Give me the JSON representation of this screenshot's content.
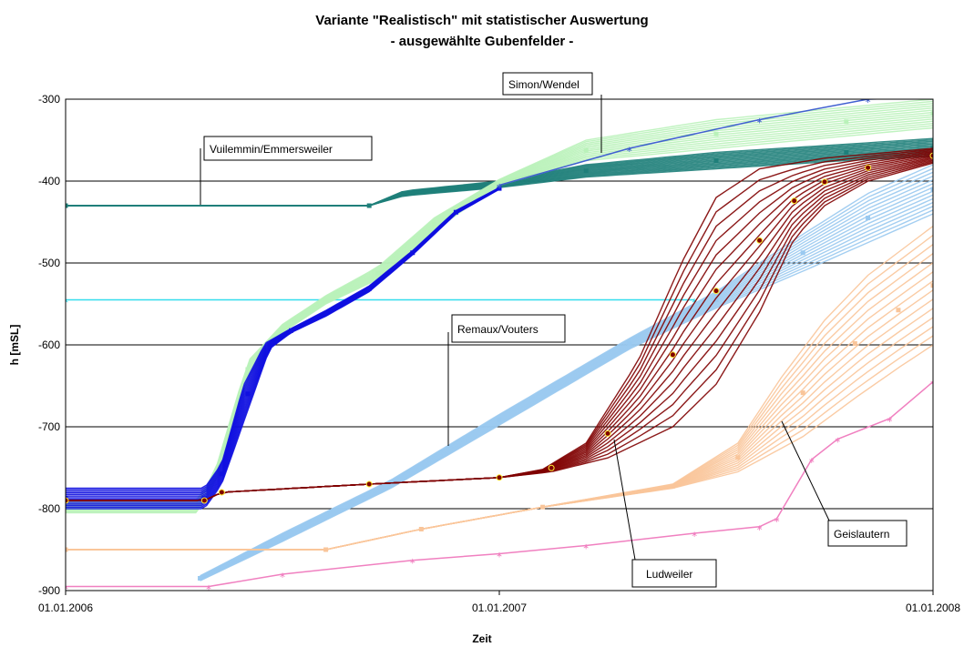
{
  "chart_data": {
    "type": "line",
    "title": "Variante \"Realistisch\" mit statistischer Auswertung",
    "subtitle": "- ausgewählte Gubenfelder -",
    "xlabel": "Zeit",
    "ylabel": "h [mSL]",
    "x_ticks": [
      "01.01.2006",
      "01.01.2007",
      "01.01.2008"
    ],
    "xlim": [
      2006.0,
      2008.0
    ],
    "ylim": [
      -900,
      -300
    ],
    "y_ticks": [
      -300,
      -400,
      -500,
      -600,
      -700,
      -800,
      -900
    ],
    "grid": "horizontal",
    "legend": "none",
    "colors": {
      "vuilemmin": "#1f7f7a",
      "cyan": "#33ddee",
      "simon": "#b9f2b9",
      "simon_teal": "#127f78",
      "blue": "#1010e0",
      "remaux": "#99c9f0",
      "ludweiler": "#800000",
      "ludweiler_marker": "#ffee33",
      "geislautern": "#f9c59a",
      "pink": "#f080c0"
    },
    "annotations": [
      {
        "label": "Simon/Wendel"
      },
      {
        "label": "Vuilemmin/Emmersweiler"
      },
      {
        "label": "Remaux/Vouters"
      },
      {
        "label": "Ludweiler"
      },
      {
        "label": "Geislautern"
      }
    ],
    "series": [
      {
        "group": "Vuilemmin/Emmersweiler",
        "color": "#1f7f7a",
        "band": 1,
        "points": [
          [
            2006.0,
            -430
          ],
          [
            2006.7,
            -430
          ],
          [
            2006.78,
            -418
          ],
          [
            2007.0,
            -408
          ],
          [
            2007.2,
            -395
          ],
          [
            2007.5,
            -385
          ],
          [
            2007.8,
            -375
          ],
          [
            2008.0,
            -370
          ]
        ],
        "points_hi": [
          [
            2006.0,
            -430
          ],
          [
            2006.7,
            -430
          ],
          [
            2006.78,
            -412
          ],
          [
            2007.0,
            -400
          ],
          [
            2007.2,
            -380
          ],
          [
            2007.5,
            -365
          ],
          [
            2007.8,
            -355
          ],
          [
            2008.0,
            -348
          ]
        ]
      },
      {
        "color": "#33ddee",
        "points": [
          [
            2006.0,
            -545
          ],
          [
            2007.45,
            -545
          ]
        ]
      },
      {
        "group": "Simon/Wendel",
        "color": "#b9f2b9",
        "band": 1,
        "points": [
          [
            2006.0,
            -805
          ],
          [
            2006.31,
            -805
          ],
          [
            2006.35,
            -760
          ],
          [
            2006.42,
            -640
          ],
          [
            2006.5,
            -585
          ],
          [
            2006.6,
            -550
          ],
          [
            2006.72,
            -520
          ],
          [
            2006.85,
            -460
          ],
          [
            2007.0,
            -405
          ],
          [
            2007.2,
            -375
          ],
          [
            2007.5,
            -360
          ],
          [
            2007.8,
            -345
          ],
          [
            2008.0,
            -335
          ]
        ],
        "points_hi": [
          [
            2006.0,
            -790
          ],
          [
            2006.31,
            -790
          ],
          [
            2006.35,
            -745
          ],
          [
            2006.42,
            -620
          ],
          [
            2006.5,
            -575
          ],
          [
            2006.6,
            -540
          ],
          [
            2006.72,
            -505
          ],
          [
            2006.85,
            -445
          ],
          [
            2007.0,
            -398
          ],
          [
            2007.2,
            -350
          ],
          [
            2007.5,
            -325
          ],
          [
            2007.8,
            -310
          ],
          [
            2008.0,
            -300
          ]
        ]
      },
      {
        "group": "Blue",
        "color": "#1010e0",
        "band": 1,
        "points": [
          [
            2006.0,
            -800
          ],
          [
            2006.32,
            -800
          ],
          [
            2006.36,
            -770
          ],
          [
            2006.42,
            -680
          ],
          [
            2006.47,
            -605
          ],
          [
            2006.52,
            -585
          ],
          [
            2006.6,
            -565
          ],
          [
            2006.7,
            -535
          ],
          [
            2006.8,
            -490
          ],
          [
            2006.9,
            -440
          ],
          [
            2007.0,
            -410
          ]
        ],
        "points_hi": [
          [
            2006.0,
            -775
          ],
          [
            2006.32,
            -775
          ],
          [
            2006.36,
            -745
          ],
          [
            2006.41,
            -650
          ],
          [
            2006.46,
            -598
          ],
          [
            2006.52,
            -580
          ],
          [
            2006.6,
            -558
          ],
          [
            2006.7,
            -528
          ],
          [
            2006.8,
            -485
          ],
          [
            2006.9,
            -436
          ],
          [
            2007.0,
            -408
          ]
        ]
      },
      {
        "color": "#4060d0",
        "points": [
          [
            2007.0,
            -405
          ],
          [
            2007.3,
            -360
          ],
          [
            2007.6,
            -325
          ],
          [
            2007.85,
            -300
          ],
          [
            2008.0,
            -298
          ]
        ]
      },
      {
        "group": "Remaux/Vouters",
        "color": "#99c9f0",
        "band": 1,
        "points": [
          [
            2006.31,
            -888
          ],
          [
            2006.5,
            -840
          ],
          [
            2006.75,
            -775
          ],
          [
            2007.0,
            -698
          ],
          [
            2007.3,
            -605
          ],
          [
            2007.5,
            -555
          ],
          [
            2007.7,
            -510
          ],
          [
            2007.85,
            -475
          ],
          [
            2008.0,
            -440
          ]
        ],
        "points_hi": [
          [
            2006.31,
            -882
          ],
          [
            2006.5,
            -830
          ],
          [
            2006.75,
            -765
          ],
          [
            2007.0,
            -685
          ],
          [
            2007.3,
            -592
          ],
          [
            2007.5,
            -535
          ],
          [
            2007.7,
            -465
          ],
          [
            2007.85,
            -415
          ],
          [
            2008.0,
            -380
          ]
        ]
      },
      {
        "group": "Ludweiler",
        "color": "#800000",
        "band": 1,
        "points": [
          [
            2006.0,
            -790
          ],
          [
            2006.32,
            -790
          ],
          [
            2006.36,
            -780
          ],
          [
            2006.7,
            -770
          ],
          [
            2007.0,
            -762
          ],
          [
            2007.12,
            -755
          ],
          [
            2007.25,
            -738
          ],
          [
            2007.4,
            -700
          ],
          [
            2007.5,
            -648
          ],
          [
            2007.6,
            -560
          ],
          [
            2007.68,
            -470
          ],
          [
            2007.75,
            -430
          ],
          [
            2007.85,
            -400
          ],
          [
            2008.0,
            -378
          ]
        ],
        "points_hi": [
          [
            2006.0,
            -790
          ],
          [
            2006.32,
            -790
          ],
          [
            2006.36,
            -780
          ],
          [
            2006.7,
            -770
          ],
          [
            2007.0,
            -762
          ],
          [
            2007.1,
            -752
          ],
          [
            2007.2,
            -720
          ],
          [
            2007.32,
            -620
          ],
          [
            2007.42,
            -500
          ],
          [
            2007.5,
            -420
          ],
          [
            2007.6,
            -385
          ],
          [
            2007.75,
            -372
          ],
          [
            2008.0,
            -360
          ]
        ]
      },
      {
        "group": "Geislautern",
        "color": "#f9c59a",
        "band": 1,
        "points": [
          [
            2006.0,
            -850
          ],
          [
            2006.6,
            -850
          ],
          [
            2006.82,
            -825
          ],
          [
            2007.1,
            -798
          ],
          [
            2007.4,
            -775
          ],
          [
            2007.55,
            -755
          ],
          [
            2007.7,
            -712
          ],
          [
            2007.82,
            -665
          ],
          [
            2007.92,
            -628
          ],
          [
            2008.0,
            -600
          ]
        ],
        "points_hi": [
          [
            2006.0,
            -850
          ],
          [
            2006.6,
            -850
          ],
          [
            2006.82,
            -825
          ],
          [
            2007.1,
            -798
          ],
          [
            2007.4,
            -770
          ],
          [
            2007.55,
            -720
          ],
          [
            2007.65,
            -640
          ],
          [
            2007.75,
            -570
          ],
          [
            2007.85,
            -515
          ],
          [
            2007.95,
            -475
          ],
          [
            2008.0,
            -455
          ]
        ]
      },
      {
        "color": "#f080c0",
        "points": [
          [
            2006.0,
            -895
          ],
          [
            2006.33,
            -895
          ],
          [
            2006.5,
            -880
          ],
          [
            2006.8,
            -863
          ],
          [
            2007.0,
            -855
          ],
          [
            2007.2,
            -845
          ],
          [
            2007.45,
            -830
          ],
          [
            2007.6,
            -822
          ],
          [
            2007.64,
            -812
          ],
          [
            2007.72,
            -740
          ],
          [
            2007.78,
            -715
          ],
          [
            2007.9,
            -690
          ],
          [
            2008.0,
            -645
          ]
        ]
      }
    ]
  }
}
